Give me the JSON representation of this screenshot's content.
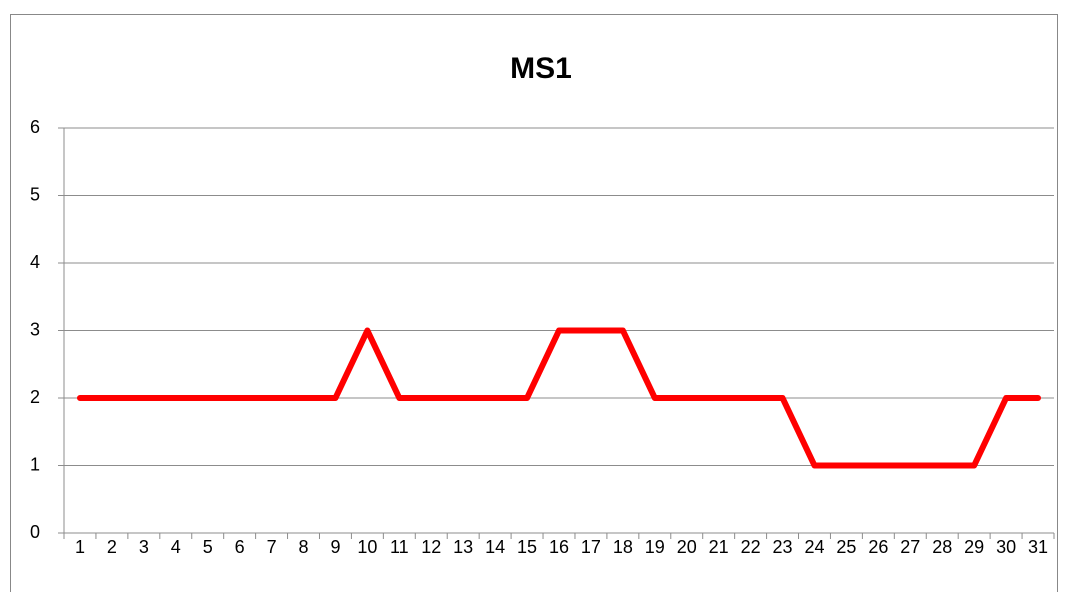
{
  "chart_data": {
    "type": "line",
    "title": "MS1",
    "categories": [
      1,
      2,
      3,
      4,
      5,
      6,
      7,
      8,
      9,
      10,
      11,
      12,
      13,
      14,
      15,
      16,
      17,
      18,
      19,
      20,
      21,
      22,
      23,
      24,
      25,
      26,
      27,
      28,
      29,
      30,
      31
    ],
    "values": [
      2,
      2,
      2,
      2,
      2,
      2,
      2,
      2,
      2,
      3,
      2,
      2,
      2,
      2,
      2,
      3,
      3,
      3,
      2,
      2,
      2,
      2,
      2,
      1,
      1,
      1,
      1,
      1,
      1,
      2,
      2
    ],
    "color": "#ff0000",
    "ylim": [
      0,
      6
    ],
    "yticks": [
      0,
      1,
      2,
      3,
      4,
      5,
      6
    ],
    "grid": true
  }
}
